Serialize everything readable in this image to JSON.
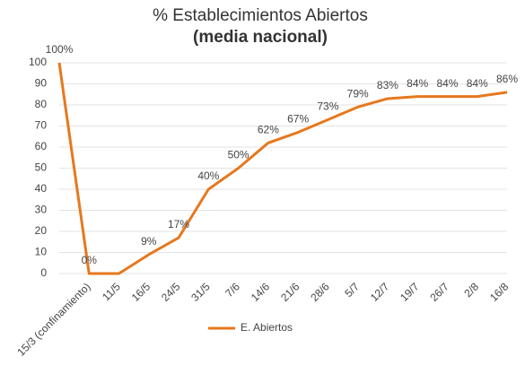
{
  "chart_data": {
    "type": "line",
    "title": "% Establecimientos Abiertos",
    "subtitle": "(media nacional)",
    "categories": [
      null,
      "15/3 (confinamiento)",
      "11/5",
      "16/5",
      "24/5",
      "31/5",
      "7/6",
      "14/6",
      "21/6",
      "28/6",
      "5/7",
      "12/7",
      "19/7",
      "26/7",
      "2/8",
      "16/8"
    ],
    "series": [
      {
        "name": "E. Abiertos",
        "color": "#e6781e",
        "values": [
          100,
          0,
          0,
          9,
          17,
          40,
          50,
          62,
          67,
          73,
          79,
          83,
          84,
          84,
          84,
          86
        ],
        "value_labels": [
          "100%",
          "0%",
          null,
          "9%",
          "17%",
          "40%",
          "50%",
          "62%",
          "67%",
          "73%",
          "79%",
          "83%",
          "84%",
          "84%",
          "84%",
          "86%"
        ]
      }
    ],
    "ylim": [
      0,
      100
    ],
    "yticks": [
      0,
      10,
      20,
      30,
      40,
      50,
      60,
      70,
      80,
      90,
      100
    ],
    "grid": true,
    "legend": "bottom"
  }
}
